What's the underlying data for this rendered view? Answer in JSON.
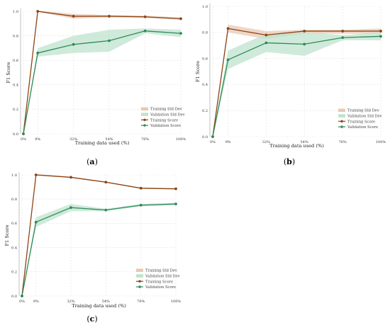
{
  "colors": {
    "training": "#8b4513",
    "training_band": "#e9c8b4",
    "validation": "#2e8b57",
    "validation_band": "#bfe3cd"
  },
  "chart_data": [
    {
      "type": "line",
      "caption_letter": "a",
      "xlabel": "Training data used (%)",
      "ylabel": "F1 Score",
      "categories": [
        "0%",
        "9%",
        "32%",
        "54%",
        "76%",
        "100%"
      ],
      "ylim": [
        0.0,
        1.0
      ],
      "yticks": [
        "0.0",
        "0.2",
        "0.4",
        "0.6",
        "0.8",
        "1.0"
      ],
      "grid": true,
      "legend_position": "bottom-right",
      "legend": [
        "Training Std Dev",
        "Validation Std Dev",
        "Training Score",
        "Validation Score"
      ],
      "series": [
        {
          "name": "Training Score",
          "values": [
            0.0,
            1.0,
            0.96,
            0.96,
            0.955,
            0.94
          ],
          "std_lower": [
            0.0,
            0.995,
            0.94,
            0.95,
            0.945,
            0.93
          ],
          "std_upper": [
            0.0,
            1.005,
            0.98,
            0.97,
            0.965,
            0.95
          ]
        },
        {
          "name": "Validation Score",
          "values": [
            0.0,
            0.66,
            0.73,
            0.76,
            0.84,
            0.82
          ],
          "std_lower": [
            0.0,
            0.63,
            0.66,
            0.67,
            0.82,
            0.79
          ],
          "std_upper": [
            0.0,
            0.7,
            0.8,
            0.85,
            0.86,
            0.85
          ]
        }
      ]
    },
    {
      "type": "line",
      "caption_letter": "b",
      "xlabel": "Training data used (%)",
      "ylabel": "F1 Score",
      "categories": [
        "0%",
        "9%",
        "32%",
        "54%",
        "76%",
        "100%"
      ],
      "ylim": [
        0.0,
        1.0
      ],
      "yticks": [
        "0.0",
        "0.2",
        "0.4",
        "0.6",
        "0.8",
        "1.0"
      ],
      "grid": true,
      "legend_position": "bottom-right",
      "legend": [
        "Training Std Dev",
        "Validation Std Dev",
        "Training Score",
        "Validation Score"
      ],
      "series": [
        {
          "name": "Training Score",
          "values": [
            0.0,
            0.83,
            0.78,
            0.81,
            0.81,
            0.81
          ],
          "std_lower": [
            0.0,
            0.8,
            0.75,
            0.79,
            0.79,
            0.79
          ],
          "std_upper": [
            0.0,
            0.86,
            0.81,
            0.82,
            0.82,
            0.83
          ]
        },
        {
          "name": "Validation Score",
          "values": [
            0.0,
            0.59,
            0.72,
            0.71,
            0.76,
            0.77
          ],
          "std_lower": [
            0.0,
            0.52,
            0.65,
            0.62,
            0.74,
            0.74
          ],
          "std_upper": [
            0.0,
            0.66,
            0.79,
            0.8,
            0.78,
            0.8
          ]
        }
      ]
    },
    {
      "type": "line",
      "caption_letter": "c",
      "xlabel": "Training data used (%)",
      "ylabel": "F1 Score",
      "categories": [
        "0%",
        "9%",
        "32%",
        "54%",
        "76%",
        "100%"
      ],
      "ylim": [
        0.0,
        1.0
      ],
      "yticks": [
        "0.0",
        "0.2",
        "0.4",
        "0.6",
        "0.8",
        "1.0"
      ],
      "grid": true,
      "legend_position": "bottom-right",
      "legend": [
        "Training Std Dev",
        "Validation Std Dev",
        "Training Score",
        "Validation Score"
      ],
      "series": [
        {
          "name": "Training Score",
          "values": [
            0.0,
            1.0,
            0.98,
            0.94,
            0.89,
            0.885
          ],
          "std_lower": [
            0.0,
            0.995,
            0.975,
            0.935,
            0.885,
            0.88
          ],
          "std_upper": [
            0.0,
            1.005,
            0.985,
            0.945,
            0.895,
            0.89
          ]
        },
        {
          "name": "Validation Score",
          "values": [
            0.0,
            0.61,
            0.73,
            0.71,
            0.75,
            0.76
          ],
          "std_lower": [
            0.0,
            0.57,
            0.7,
            0.7,
            0.74,
            0.75
          ],
          "std_upper": [
            0.0,
            0.65,
            0.76,
            0.72,
            0.76,
            0.77
          ]
        }
      ]
    }
  ]
}
